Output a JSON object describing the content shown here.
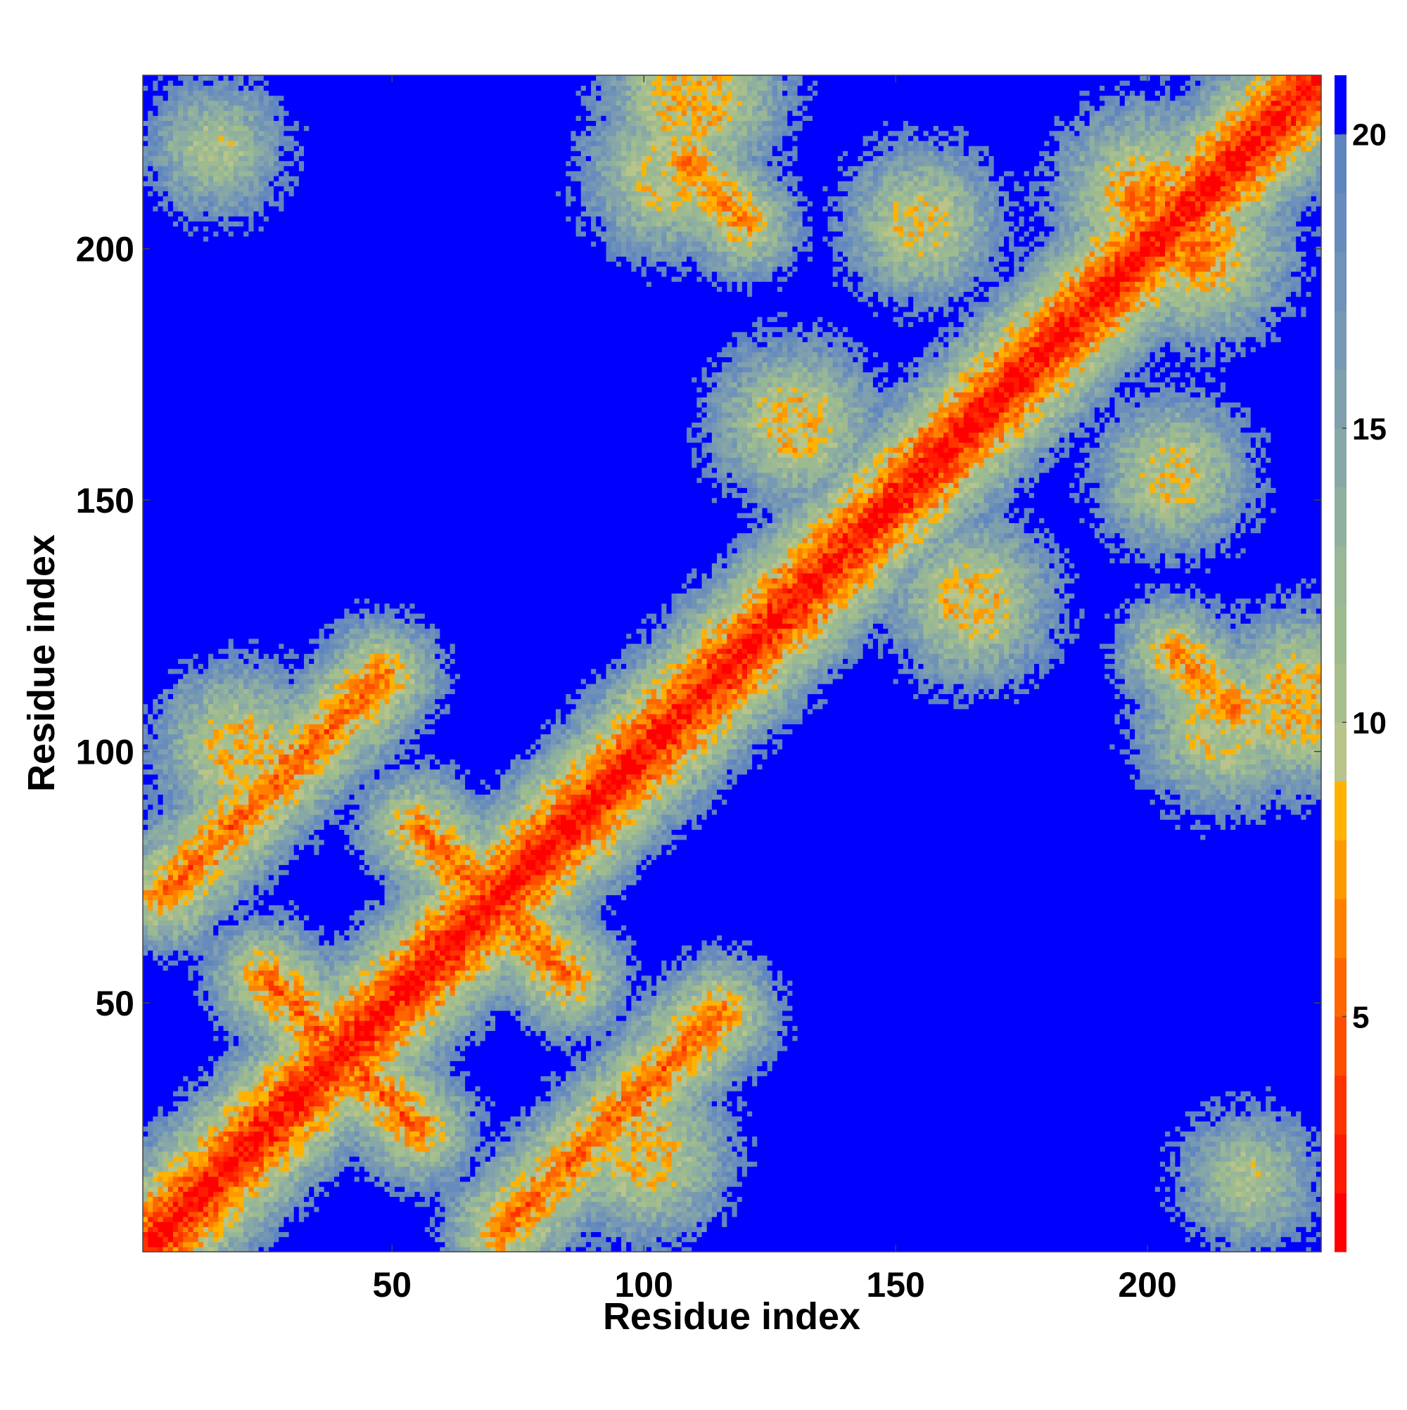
{
  "chart_data": {
    "type": "heatmap",
    "title": "",
    "xlabel": "Residue index",
    "ylabel": "Residue index",
    "n_residues": 234,
    "xlim": [
      1,
      234
    ],
    "ylim": [
      1,
      234
    ],
    "x_ticks": [
      50,
      100,
      150,
      200
    ],
    "y_ticks": [
      50,
      100,
      150,
      200
    ],
    "x_tick_labels": [
      "50",
      "100",
      "150",
      "200"
    ],
    "y_tick_labels": [
      "50",
      "100",
      "150",
      "200"
    ],
    "grid": false,
    "value_description": "pairwise residue distance map, symmetric about the diagonal",
    "colorbar": {
      "range": [
        1,
        21
      ],
      "ticks": [
        5,
        10,
        15,
        20
      ],
      "tick_labels": [
        "5",
        "10",
        "15",
        "20"
      ],
      "levels": [
        {
          "upper": 2,
          "color": "#ff0000"
        },
        {
          "upper": 3,
          "color": "#ff1a00"
        },
        {
          "upper": 4,
          "color": "#ff3300"
        },
        {
          "upper": 5,
          "color": "#ff4d00"
        },
        {
          "upper": 6,
          "color": "#ff6600"
        },
        {
          "upper": 7,
          "color": "#ff8000"
        },
        {
          "upper": 8,
          "color": "#ff9900"
        },
        {
          "upper": 9,
          "color": "#ffb300"
        },
        {
          "upper": 10,
          "color": "#b8c48a"
        },
        {
          "upper": 11,
          "color": "#a7bf8c"
        },
        {
          "upper": 12,
          "color": "#9dbb8e"
        },
        {
          "upper": 13,
          "color": "#97b797"
        },
        {
          "upper": 14,
          "color": "#8fb09f"
        },
        {
          "upper": 15,
          "color": "#88a8a7"
        },
        {
          "upper": 16,
          "color": "#80a0ad"
        },
        {
          "upper": 17,
          "color": "#7799b3"
        },
        {
          "upper": 18,
          "color": "#6f92b8"
        },
        {
          "upper": 19,
          "color": "#678bbc"
        },
        {
          "upper": 20,
          "color": "#5f85c0"
        },
        {
          "upper": 21,
          "color": "#0000ff"
        }
      ]
    },
    "diagonal_band": {
      "start": 1,
      "end": 234,
      "value": 1
    },
    "contact_features": [
      {
        "type": "anti",
        "i_range": [
          25,
          55
        ],
        "j_range": [
          55,
          25
        ],
        "min_dist": 5
      },
      {
        "type": "anti",
        "i_range": [
          55,
          85
        ],
        "j_range": [
          85,
          55
        ],
        "min_dist": 5
      },
      {
        "type": "anti",
        "i_range": [
          72,
          115
        ],
        "j_range": [
          5,
          48
        ],
        "min_dist": 5
      },
      {
        "type": "parallel",
        "i_range": [
          1,
          12
        ],
        "j_range": [
          118,
          105
        ],
        "min_dist": 6
      },
      {
        "type": "parallel",
        "i_range": [
          1,
          12
        ],
        "j_range": [
          85,
          72
        ],
        "min_dist": 6
      },
      {
        "type": "anti",
        "i_range": [
          108,
          125
        ],
        "j_range": [
          215,
          200
        ],
        "min_dist": 6
      },
      {
        "type": "anti",
        "i_range": [
          205,
          218
        ],
        "j_range": [
          120,
          108
        ],
        "min_dist": 6
      },
      {
        "type": "cluster",
        "center": [
          200,
          210
        ],
        "radius": 10,
        "min_dist": 6
      },
      {
        "type": "cluster",
        "center": [
          210,
          200
        ],
        "radius": 10,
        "min_dist": 6
      },
      {
        "type": "cluster",
        "center": [
          130,
          165
        ],
        "radius": 16,
        "min_dist": 9
      },
      {
        "type": "cluster",
        "center": [
          165,
          130
        ],
        "radius": 16,
        "min_dist": 9
      },
      {
        "type": "cluster",
        "center": [
          230,
          110
        ],
        "radius": 22,
        "min_dist": 9
      },
      {
        "type": "cluster",
        "center": [
          110,
          230
        ],
        "radius": 22,
        "min_dist": 9
      },
      {
        "type": "cluster",
        "center": [
          20,
          100
        ],
        "radius": 18,
        "min_dist": 9
      },
      {
        "type": "cluster",
        "center": [
          100,
          20
        ],
        "radius": 18,
        "min_dist": 9
      },
      {
        "type": "cluster",
        "center": [
          105,
          215
        ],
        "radius": 20,
        "min_dist": 10
      },
      {
        "type": "cluster",
        "center": [
          215,
          105
        ],
        "radius": 20,
        "min_dist": 10
      },
      {
        "type": "cluster",
        "center": [
          15,
          220
        ],
        "radius": 12,
        "min_dist": 11
      },
      {
        "type": "cluster",
        "center": [
          220,
          15
        ],
        "radius": 12,
        "min_dist": 11
      },
      {
        "type": "cluster",
        "center": [
          155,
          205
        ],
        "radius": 16,
        "min_dist": 10
      },
      {
        "type": "cluster",
        "center": [
          205,
          155
        ],
        "radius": 16,
        "min_dist": 10
      }
    ]
  }
}
